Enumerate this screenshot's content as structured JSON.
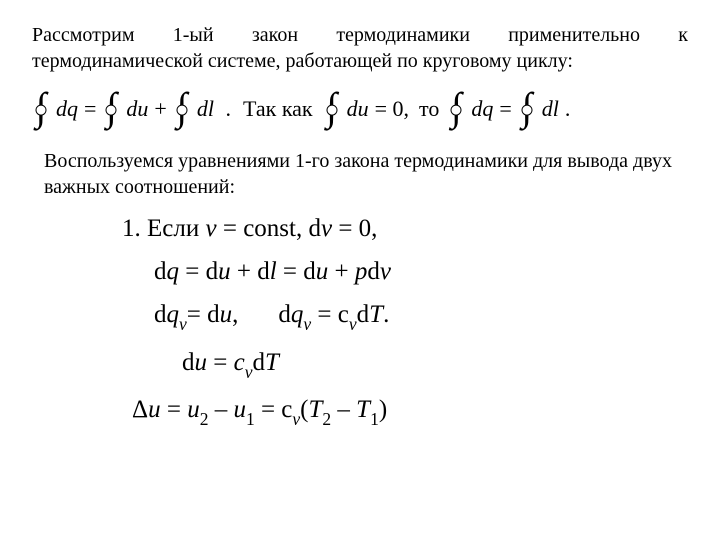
{
  "para1": "Рассмотрим 1-ый закон термодинамики применительно к термодинамической системе, работающей по круговому циклу:",
  "eq1": {
    "dq": "dq",
    "eq": " = ",
    "du": "du",
    "plus": " + ",
    "dl": "dl",
    "dot": ".",
    "since": "Так как",
    "zero": " = 0,",
    "then": "то",
    "dot2": "."
  },
  "para2": "Воспользуемся уравнениями 1-го закона термодинамики для вывода двух важных соотношений:",
  "m": {
    "l1a": "1.  Если ",
    "l1b": " = const, d",
    "l1c": " = 0,",
    "l2a": "d",
    "l2b": " = d",
    "l2c": " + d",
    "l2d": "  = d",
    "l2e": " + ",
    "l2f": "d",
    "l3a": "d",
    "l3b": "= d",
    "l3c": ",",
    "l3d": "d",
    "l3e": " = c",
    "l3f": "d",
    "l3g": ".",
    "l4a": "d",
    "l4b": "  = ",
    "l4c": "d",
    "l5a": "Δ",
    "l5b": "  = ",
    "l5c": " – ",
    "l5d": " = c",
    "l5e": "(",
    "l5f": " – ",
    "l5g": ")",
    "v": "v",
    "u": "u",
    "q": "q",
    "l": "l",
    "p": "p",
    "T": "T",
    "cv": "c",
    "sub_v": "v",
    "sub1": "1",
    "sub2": "2"
  }
}
